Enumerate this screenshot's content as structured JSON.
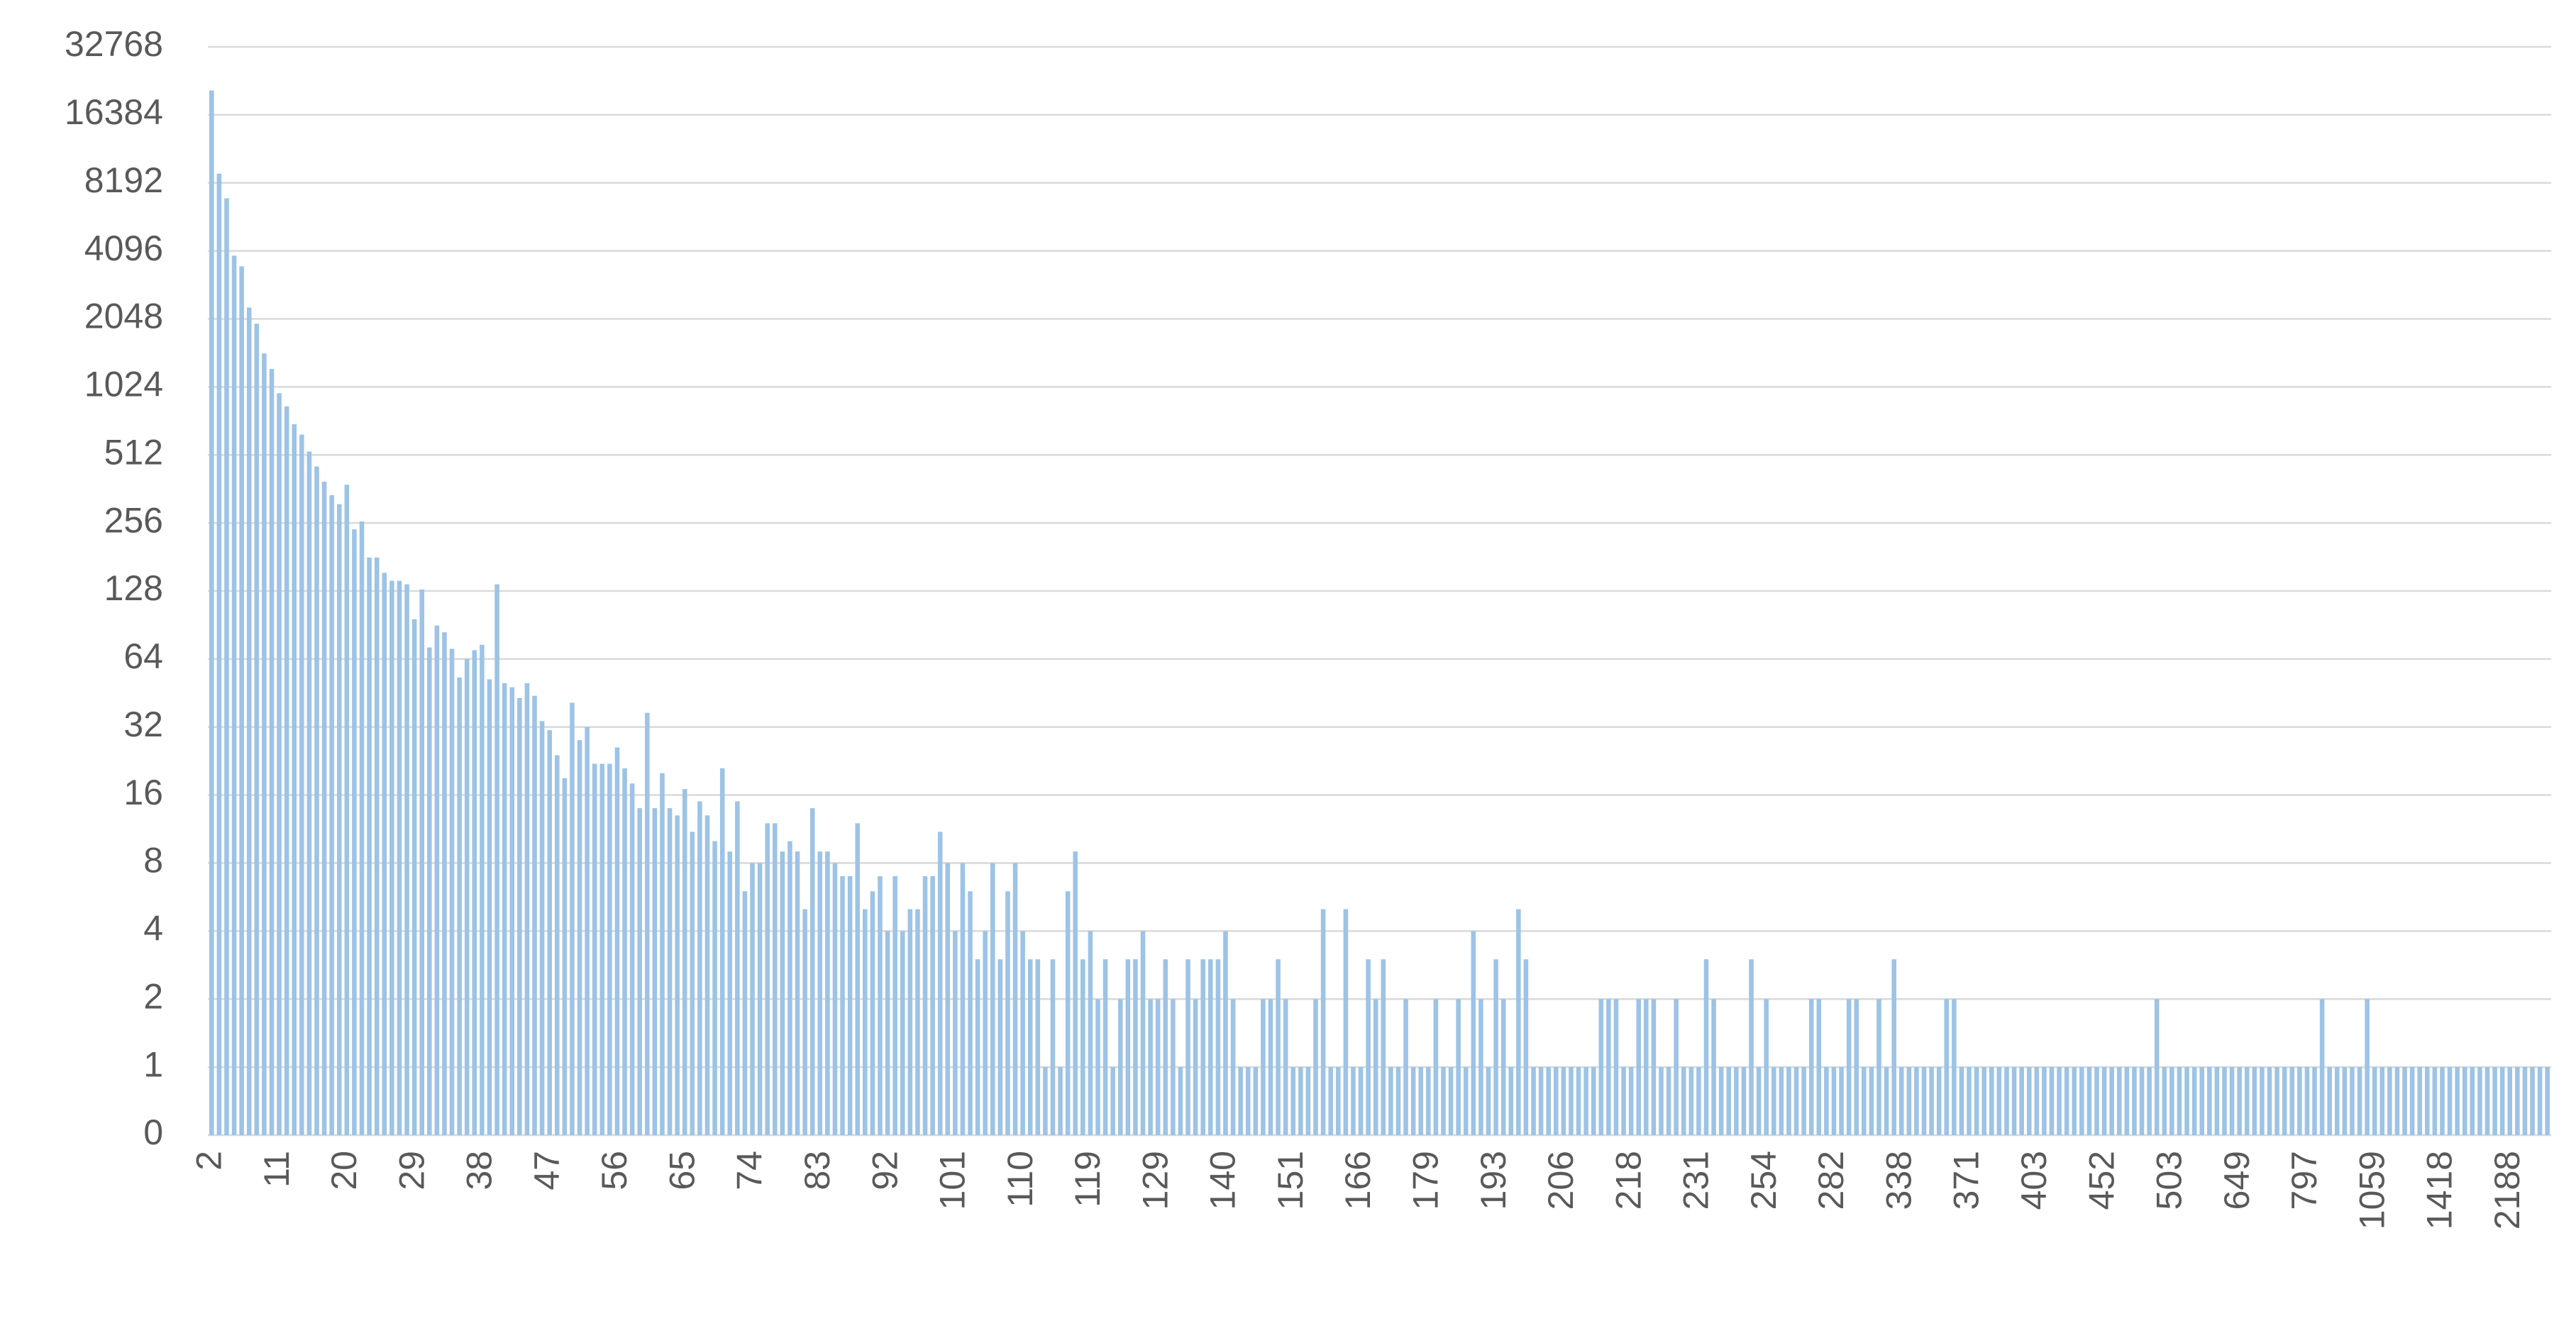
{
  "chart_data": {
    "type": "bar",
    "color": "#9dc3e6",
    "log_scale": true,
    "log_base": 2,
    "grid": true,
    "ylim": [
      0.5,
      32768
    ],
    "yticks": [
      {
        "value": 0.5,
        "label": "0"
      },
      1,
      2,
      4,
      8,
      16,
      32,
      64,
      128,
      256,
      512,
      1024,
      2048,
      4096,
      8192,
      16384,
      32768
    ],
    "categories": [
      "2",
      null,
      null,
      null,
      null,
      null,
      null,
      null,
      null,
      "11",
      null,
      null,
      null,
      null,
      null,
      null,
      null,
      null,
      "20",
      null,
      null,
      null,
      null,
      null,
      null,
      null,
      null,
      "29",
      null,
      null,
      null,
      null,
      null,
      null,
      null,
      null,
      "38",
      null,
      null,
      null,
      null,
      null,
      null,
      null,
      null,
      "47",
      null,
      null,
      null,
      null,
      null,
      null,
      null,
      null,
      "56",
      null,
      null,
      null,
      null,
      null,
      null,
      null,
      null,
      "65",
      null,
      null,
      null,
      null,
      null,
      null,
      null,
      null,
      "74",
      null,
      null,
      null,
      null,
      null,
      null,
      null,
      null,
      "83",
      null,
      null,
      null,
      null,
      null,
      null,
      null,
      null,
      "92",
      null,
      null,
      null,
      null,
      null,
      null,
      null,
      null,
      "101",
      null,
      null,
      null,
      null,
      null,
      null,
      null,
      null,
      "110",
      null,
      null,
      null,
      null,
      null,
      null,
      null,
      null,
      "119",
      null,
      null,
      null,
      null,
      null,
      null,
      null,
      null,
      "129",
      null,
      null,
      null,
      null,
      null,
      null,
      null,
      null,
      "140",
      null,
      null,
      null,
      null,
      null,
      null,
      null,
      null,
      "151",
      null,
      null,
      null,
      null,
      null,
      null,
      null,
      null,
      "166",
      null,
      null,
      null,
      null,
      null,
      null,
      null,
      null,
      "179",
      null,
      null,
      null,
      null,
      null,
      null,
      null,
      null,
      "193",
      null,
      null,
      null,
      null,
      null,
      null,
      null,
      null,
      "206",
      null,
      null,
      null,
      null,
      null,
      null,
      null,
      null,
      "218",
      null,
      null,
      null,
      null,
      null,
      null,
      null,
      null,
      "231",
      null,
      null,
      null,
      null,
      null,
      null,
      null,
      null,
      "254",
      null,
      null,
      null,
      null,
      null,
      null,
      null,
      null,
      "282",
      null,
      null,
      null,
      null,
      null,
      null,
      null,
      null,
      "338",
      null,
      null,
      null,
      null,
      null,
      null,
      null,
      null,
      "371",
      null,
      null,
      null,
      null,
      null,
      null,
      null,
      null,
      "403",
      null,
      null,
      null,
      null,
      null,
      null,
      null,
      null,
      "452",
      null,
      null,
      null,
      null,
      null,
      null,
      null,
      null,
      "503",
      null,
      null,
      null,
      null,
      null,
      null,
      null,
      null,
      "649",
      null,
      null,
      null,
      null,
      null,
      null,
      null,
      null,
      "797",
      null,
      null,
      null,
      null,
      null,
      null,
      null,
      null,
      "1059",
      null,
      null,
      null,
      null,
      null,
      null,
      null,
      null,
      "1418",
      null,
      null,
      null,
      null,
      null,
      null,
      null,
      null,
      "2188",
      null,
      null,
      null,
      null,
      null
    ],
    "values": [
      21000,
      9000,
      7000,
      3900,
      3500,
      2300,
      1950,
      1440,
      1230,
      960,
      840,
      700,
      630,
      530,
      455,
      390,
      340,
      310,
      378,
      240,
      260,
      180,
      180,
      154,
      142,
      142,
      137,
      96,
      130,
      72,
      90,
      84,
      71,
      53,
      64,
      70,
      74,
      52,
      137,
      50,
      48,
      43,
      50,
      44,
      34,
      31,
      24,
      19,
      41,
      28,
      32,
      22,
      22,
      22,
      26,
      21,
      18,
      14,
      37,
      14,
      20,
      14,
      13,
      17,
      11,
      15,
      13,
      10,
      21,
      9,
      15,
      6,
      8,
      8,
      12,
      12,
      9,
      10,
      9,
      5,
      14,
      9,
      9,
      8,
      7,
      7,
      12,
      5,
      6,
      7,
      4,
      7,
      4,
      5,
      5,
      7,
      7,
      11,
      8,
      4,
      8,
      6,
      3,
      4,
      8,
      3,
      6,
      8,
      4,
      3,
      3,
      1,
      3,
      1,
      6,
      9,
      3,
      4,
      2,
      3,
      1,
      2,
      3,
      3,
      4,
      2,
      2,
      3,
      2,
      1,
      3,
      2,
      3,
      3,
      3,
      4,
      2,
      1,
      1,
      1,
      2,
      2,
      3,
      2,
      1,
      1,
      1,
      2,
      5,
      1,
      1,
      5,
      1,
      1,
      3,
      2,
      3,
      1,
      1,
      2,
      1,
      1,
      1,
      2,
      1,
      1,
      2,
      1,
      4,
      2,
      1,
      3,
      2,
      1,
      5,
      3,
      1,
      1,
      1,
      1,
      1,
      1,
      1,
      1,
      1,
      2,
      2,
      2,
      1,
      1,
      2,
      2,
      2,
      1,
      1,
      2,
      1,
      1,
      1,
      3,
      2,
      1,
      1,
      1,
      1,
      3,
      1,
      2,
      1,
      1,
      1,
      1,
      1,
      2,
      2,
      1,
      1,
      1,
      2,
      2,
      1,
      1,
      2,
      1,
      3,
      1,
      1,
      1,
      1,
      1,
      1,
      2,
      2,
      1,
      1,
      1,
      1,
      1,
      1,
      1,
      1,
      1,
      1,
      1,
      1,
      1,
      1,
      1,
      1,
      1,
      1,
      1,
      1,
      1,
      1,
      1,
      1,
      1,
      1,
      2,
      1,
      1,
      1,
      1,
      1,
      1,
      1,
      1,
      1,
      1,
      1,
      1,
      1,
      1,
      1,
      1,
      1,
      1,
      1,
      1,
      1,
      2,
      1,
      1,
      1,
      1,
      1,
      2,
      1,
      1,
      1,
      1,
      1,
      1,
      1,
      1,
      1,
      1,
      1,
      1,
      1,
      1,
      1,
      1,
      1,
      1,
      1,
      1,
      1,
      1,
      1,
      1
    ]
  }
}
